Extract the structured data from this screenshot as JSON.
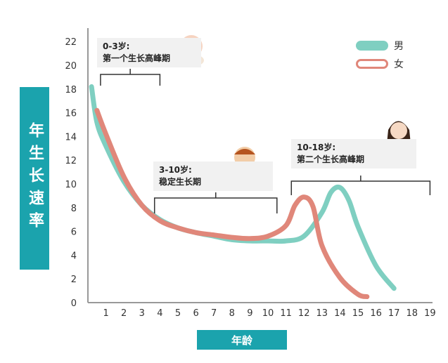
{
  "chart_data": {
    "type": "line",
    "ylabel": "年生长速率",
    "xlabel": "年龄",
    "x_ticks": [
      1,
      2,
      3,
      4,
      5,
      6,
      7,
      8,
      9,
      10,
      11,
      12,
      13,
      14,
      15,
      16,
      17,
      18,
      19
    ],
    "y_ticks": [
      0,
      2,
      4,
      6,
      8,
      10,
      12,
      14,
      16,
      18,
      20,
      22
    ],
    "xlim": [
      0,
      19
    ],
    "ylim": [
      0,
      22
    ],
    "series": [
      {
        "name": "男",
        "color": "#7fcfc1",
        "points": [
          [
            0.2,
            18.2
          ],
          [
            0.5,
            15.2
          ],
          [
            1,
            13.2
          ],
          [
            2,
            10.2
          ],
          [
            3,
            8.2
          ],
          [
            4,
            7.0
          ],
          [
            5,
            6.3
          ],
          [
            6,
            5.9
          ],
          [
            7,
            5.6
          ],
          [
            8,
            5.3
          ],
          [
            9,
            5.2
          ],
          [
            10,
            5.2
          ],
          [
            11,
            5.2
          ],
          [
            12,
            5.6
          ],
          [
            13,
            7.6
          ],
          [
            13.5,
            9.3
          ],
          [
            14,
            9.7
          ],
          [
            14.5,
            8.6
          ],
          [
            15,
            6.4
          ],
          [
            16,
            3.1
          ],
          [
            17,
            1.2
          ]
        ]
      },
      {
        "name": "女",
        "color": "#e0877a",
        "points": [
          [
            0.5,
            16.2
          ],
          [
            1,
            14.2
          ],
          [
            2,
            10.6
          ],
          [
            3,
            8.2
          ],
          [
            4,
            6.9
          ],
          [
            5,
            6.3
          ],
          [
            6,
            5.9
          ],
          [
            7,
            5.7
          ],
          [
            8,
            5.5
          ],
          [
            9,
            5.4
          ],
          [
            10,
            5.6
          ],
          [
            11,
            6.5
          ],
          [
            11.5,
            8.2
          ],
          [
            12,
            8.9
          ],
          [
            12.5,
            8.1
          ],
          [
            13,
            4.8
          ],
          [
            14,
            2.1
          ],
          [
            15,
            0.7
          ],
          [
            15.5,
            0.5
          ]
        ]
      }
    ],
    "legend_position": "top-right"
  },
  "callouts": {
    "stage1_line1": "0-3岁:",
    "stage1_line2": "第一个生长高峰期",
    "stage2_line1": "3-10岁:",
    "stage2_line2": "稳定生长期",
    "stage3_line1": "10-18岁:",
    "stage3_line2": "第二个生长高峰期"
  },
  "brackets": [
    {
      "name": "bracket-0-3",
      "x_start": 0.7,
      "x_end": 4
    },
    {
      "name": "bracket-3-10",
      "x_start": 3.7,
      "x_end": 10.5
    },
    {
      "name": "bracket-10-18",
      "x_start": 11.3,
      "x_end": 19
    }
  ],
  "illustrations": [
    "baby-icon",
    "toddler-icon",
    "teen-girl-icon"
  ]
}
